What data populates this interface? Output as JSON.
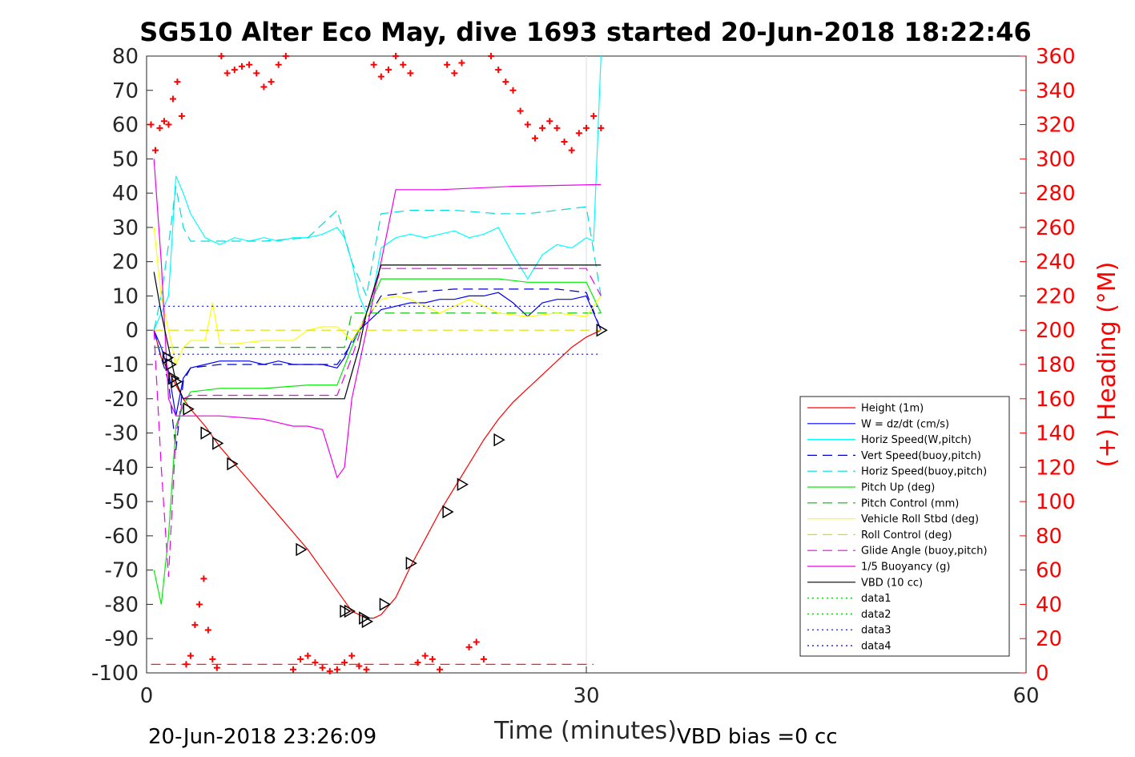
{
  "chart_data": {
    "type": "line",
    "title": "SG510 Alter Eco May, dive 1693 started 20-Jun-2018 18:22:46",
    "xlabel": "Time (minutes)",
    "ylabel_right": "(+) Heading (°M)",
    "xlim": [
      0,
      60
    ],
    "ylim": [
      -100,
      80
    ],
    "ylim_right": [
      0,
      360
    ],
    "x_ticks": [
      "0",
      "30",
      "60"
    ],
    "y_ticks": [
      "80",
      "70",
      "60",
      "50",
      "40",
      "30",
      "20",
      "10",
      "0",
      "-10",
      "-20",
      "-30",
      "-40",
      "-50",
      "-60",
      "-70",
      "-80",
      "-90",
      "-100"
    ],
    "y_ticks_right": [
      "360",
      "340",
      "320",
      "300",
      "280",
      "260",
      "240",
      "220",
      "200",
      "180",
      "160",
      "140",
      "120",
      "100",
      "80",
      "60",
      "40",
      "20",
      "0"
    ],
    "grid": "x-only at 30",
    "legend_position": "lower-right inside axes",
    "footer_left": "20-Jun-2018 23:26:09",
    "footer_right": "VBD bias =0 cc",
    "series": [
      {
        "name": "Height (1m)",
        "color": "#ff0000",
        "style": "solid",
        "x": [
          0.5,
          1.0,
          1.5,
          2.0,
          2.5,
          3.0,
          4.0,
          5.0,
          6.0,
          7.0,
          8.0,
          9.0,
          10.0,
          11.0,
          12.0,
          13.0,
          13.5,
          14.0,
          14.5,
          15.0,
          15.5,
          16.0,
          17.0,
          18.0,
          19.0,
          20.0,
          21.0,
          22.0,
          23.0,
          24.0,
          25.0,
          26.0,
          27.0,
          28.0,
          29.0,
          30.0,
          31.0
        ],
        "y": [
          0,
          -8,
          -12,
          -16,
          -20,
          -23,
          -28,
          -34,
          -39,
          -44,
          -49,
          -54,
          -59,
          -64,
          -70,
          -76,
          -79,
          -82,
          -83,
          -84,
          -84,
          -83,
          -78,
          -69,
          -61,
          -53,
          -46,
          -39,
          -32,
          -26,
          -21,
          -17,
          -13,
          -9,
          -5,
          -2,
          0
        ]
      },
      {
        "name": "W = dz/dt (cm/s)",
        "color": "#0000ff",
        "style": "solid",
        "x": [
          0.5,
          1.0,
          1.5,
          2.0,
          2.5,
          3.0,
          4.0,
          5.0,
          6.0,
          7.0,
          8.0,
          9.0,
          10.0,
          11.0,
          12.0,
          13.0,
          13.5,
          14.0,
          14.5,
          15.0,
          15.5,
          16.0,
          17.0,
          18.0,
          19.0,
          20.0,
          21.0,
          22.0,
          23.0,
          24.0,
          25.0,
          26.0,
          27.0,
          28.0,
          29.0,
          30.0,
          31.0
        ],
        "y": [
          0,
          -5,
          -12,
          -25,
          -14,
          -11,
          -10,
          -9,
          -9,
          -9,
          -10,
          -9,
          -10,
          -10,
          -10,
          -11,
          -8,
          -3,
          0,
          2,
          4,
          6,
          7,
          8,
          8,
          9,
          9,
          10,
          10,
          11,
          8,
          4,
          8,
          9,
          9,
          10,
          0
        ]
      },
      {
        "name": "Horiz Speed(W,pitch)",
        "color": "#00ffff",
        "style": "solid",
        "x": [
          0.5,
          1.0,
          1.5,
          2.0,
          2.5,
          3.0,
          4.0,
          5.0,
          6.0,
          7.0,
          8.0,
          9.0,
          10.0,
          11.0,
          12.0,
          13.0,
          13.5,
          14.0,
          14.5,
          15.0,
          15.5,
          16.0,
          17.0,
          18.0,
          19.0,
          20.0,
          21.0,
          22.0,
          23.0,
          24.0,
          25.0,
          26.0,
          27.0,
          28.0,
          29.0,
          30.0,
          30.5,
          31.0
        ],
        "y": [
          0,
          5,
          10,
          45,
          40,
          34,
          27,
          25,
          27,
          26,
          27,
          26,
          27,
          27,
          28,
          30,
          27,
          20,
          10,
          5,
          12,
          24,
          27,
          28,
          27,
          28,
          29,
          27,
          28,
          30,
          22,
          15,
          22,
          25,
          24,
          27,
          26,
          80
        ]
      },
      {
        "name": "Vert Speed(buoy,pitch)",
        "color": "#0000cc",
        "style": "dashed",
        "x": [
          0.5,
          1.0,
          1.5,
          2.0,
          2.5,
          3.0,
          5.0,
          8.0,
          11.0,
          13.0,
          14.0,
          15.0,
          16.0,
          18.0,
          21.0,
          24.0,
          26.0,
          28.0,
          30.0,
          31.0
        ],
        "y": [
          0,
          -8,
          -15,
          -35,
          -15,
          -11,
          -10,
          -10,
          -10,
          -10,
          -4,
          3,
          10,
          11,
          12,
          12,
          12,
          12,
          11,
          0
        ]
      },
      {
        "name": "Horiz Speed(buoy,pitch)",
        "color": "#00dddd",
        "style": "dashed",
        "x": [
          0.5,
          1.0,
          1.5,
          2.0,
          2.5,
          3.0,
          5.0,
          8.0,
          11.0,
          13.0,
          14.0,
          15.0,
          16.0,
          18.0,
          21.0,
          24.0,
          26.0,
          28.0,
          30.0,
          31.0
        ],
        "y": [
          0,
          10,
          25,
          42,
          30,
          26,
          26,
          26,
          27,
          35,
          20,
          10,
          34,
          35,
          35,
          34,
          34,
          35,
          36,
          10
        ]
      },
      {
        "name": "Pitch Up (deg)",
        "color": "#00ee00",
        "style": "solid",
        "x": [
          0.5,
          1.0,
          1.5,
          2.0,
          2.5,
          3.0,
          5.0,
          8.0,
          11.0,
          13.0,
          14.0,
          15.0,
          16.0,
          18.0,
          21.0,
          24.0,
          26.0,
          28.0,
          30.0,
          31.0
        ],
        "y": [
          -70,
          -80,
          -60,
          -28,
          -22,
          -18,
          -17,
          -17,
          -16,
          -16,
          -5,
          5,
          15,
          15,
          15,
          15,
          14,
          14,
          14,
          5
        ]
      },
      {
        "name": "Pitch Control (mm)",
        "color": "#00bb00",
        "style": "dashed",
        "x": [
          0.5,
          2.0,
          2.5,
          13.5,
          14.0,
          30.5,
          31.0
        ],
        "y": [
          -5,
          -5,
          -5,
          -5,
          5,
          5,
          5
        ]
      },
      {
        "name": "Vehicle Roll Stbd (deg)",
        "color": "#ffff00",
        "style": "solid",
        "x": [
          0.5,
          1.0,
          1.5,
          2.0,
          2.5,
          3.0,
          4.0,
          4.5,
          5.0,
          6.0,
          8.0,
          10.0,
          11.0,
          12.0,
          13.0,
          13.5,
          14.0,
          15.0,
          16.0,
          17.0,
          18.0,
          20.0,
          22.0,
          24.0,
          26.0,
          28.0,
          30.0,
          31.0
        ],
        "y": [
          30,
          10,
          0,
          -10,
          -5,
          -3,
          -3,
          8,
          -4,
          -4,
          -3,
          -3,
          0,
          1,
          1,
          -1,
          -3,
          4,
          9,
          10,
          9,
          5,
          9,
          5,
          4,
          5,
          4,
          10
        ]
      },
      {
        "name": "Roll Control (deg)",
        "color": "#dddd00",
        "style": "dashed",
        "x": [
          0.5,
          13.5,
          14.0,
          31.0
        ],
        "y": [
          0,
          0,
          0,
          0
        ]
      },
      {
        "name": "Glide Angle (buoy,pitch)",
        "color": "#ee00ee",
        "style": "dashed",
        "x": [
          0.5,
          1.0,
          1.5,
          2.0,
          2.5,
          3.0,
          5.0,
          8.0,
          11.0,
          13.0,
          14.0,
          15.0,
          16.0,
          18.0,
          21.0,
          24.0,
          26.0,
          28.0,
          30.0,
          31.0
        ],
        "y": [
          0,
          -40,
          -72,
          -30,
          -20,
          -19,
          -19,
          -19,
          -19,
          -19,
          -8,
          5,
          18,
          18,
          18,
          18,
          18,
          18,
          18,
          10
        ]
      },
      {
        "name": "1/5 Buoyancy (g)",
        "color": "#ee00ee",
        "style": "solid",
        "x": [
          0.5,
          1.0,
          1.5,
          2.0,
          2.5,
          3.0,
          5.0,
          8.0,
          9.0,
          10.0,
          11.0,
          12.0,
          12.5,
          13.0,
          13.5,
          14.0,
          15.0,
          16.0,
          17.0,
          20.0,
          25.0,
          31.0
        ],
        "y": [
          50,
          20,
          -20,
          -25,
          -25,
          -25,
          -25,
          -26,
          -27,
          -28,
          -28,
          -29,
          -36,
          -43,
          -40,
          -20,
          0,
          20,
          41,
          41,
          42,
          42.5
        ]
      },
      {
        "name": "VBD (10 cc)",
        "color": "#000000",
        "style": "solid",
        "x": [
          0.5,
          1.0,
          1.5,
          2.0,
          2.5,
          3.0,
          13.5,
          14.5,
          15.0,
          16.0,
          17.0,
          31.0
        ],
        "y": [
          17,
          5,
          -5,
          -15,
          -20,
          -20,
          -20,
          -5,
          5,
          19,
          19,
          19
        ]
      },
      {
        "name": "data1",
        "color": "#00cc00",
        "style": "dotted",
        "x": [],
        "y": []
      },
      {
        "name": "data2",
        "color": "#00cc00",
        "style": "dotted",
        "x": [],
        "y": []
      },
      {
        "name": "data3",
        "color": "#0000cc",
        "style": "dotted",
        "x": [
          0.5,
          31.0
        ],
        "y": [
          7,
          7
        ]
      },
      {
        "name": "data4",
        "color": "#0000cc",
        "style": "dotted",
        "x": [
          0.5,
          31.0
        ],
        "y": [
          -7,
          -7
        ]
      }
    ],
    "heading_series": {
      "color": "#ff0000",
      "marker": "+",
      "axis": "right",
      "x": [
        0.3,
        0.6,
        0.9,
        1.2,
        1.5,
        1.8,
        2.1,
        2.4,
        2.7,
        3.0,
        3.3,
        3.6,
        3.9,
        4.2,
        4.5,
        4.8,
        5.1,
        5.5,
        6.0,
        6.5,
        7.0,
        7.5,
        8.0,
        8.5,
        9.0,
        9.5,
        10.0,
        10.5,
        11.0,
        11.5,
        12.0,
        12.5,
        13.0,
        13.5,
        14.0,
        14.5,
        15.0,
        15.5,
        16.0,
        16.5,
        17.0,
        17.5,
        18.0,
        18.5,
        19.0,
        19.5,
        20.0,
        20.5,
        21.0,
        21.5,
        22.0,
        22.5,
        23.0,
        23.5,
        24.0,
        24.5,
        25.0,
        25.5,
        26.0,
        26.5,
        27.0,
        27.5,
        28.0,
        28.5,
        29.0,
        29.5,
        30.0,
        30.5,
        31.0
      ],
      "y": [
        320,
        305,
        318,
        322,
        320,
        335,
        345,
        325,
        5,
        10,
        28,
        40,
        55,
        25,
        8,
        3,
        360,
        350,
        352,
        354,
        355,
        350,
        342,
        345,
        355,
        360,
        2,
        8,
        10,
        6,
        3,
        1,
        2,
        6,
        10,
        4,
        2,
        355,
        348,
        352,
        360,
        355,
        350,
        6,
        10,
        8,
        2,
        355,
        350,
        356,
        15,
        18,
        8,
        360,
        352,
        345,
        340,
        328,
        320,
        312,
        318,
        322,
        318,
        310,
        305,
        315,
        318,
        325,
        318
      ]
    },
    "heading_reference": {
      "color": "#ff0000",
      "style": "dashed",
      "axis": "right",
      "value": 5,
      "x": [
        0.3,
        30.5
      ]
    },
    "markers": {
      "color": "#000000",
      "shape": "triangle",
      "x": [
        1.4,
        1.6,
        1.8,
        2.0,
        2.8,
        4.0,
        4.8,
        5.8,
        10.5,
        13.5,
        13.8,
        14.8,
        15.0,
        16.2,
        18.0,
        20.5,
        21.5,
        24.0,
        31.0
      ],
      "y": [
        -8,
        -10,
        -14,
        -15,
        -23,
        -30,
        -33,
        -39,
        -64,
        -82,
        -82,
        -84,
        -85,
        -80,
        -68,
        -53,
        -45,
        -32,
        0
      ]
    }
  }
}
